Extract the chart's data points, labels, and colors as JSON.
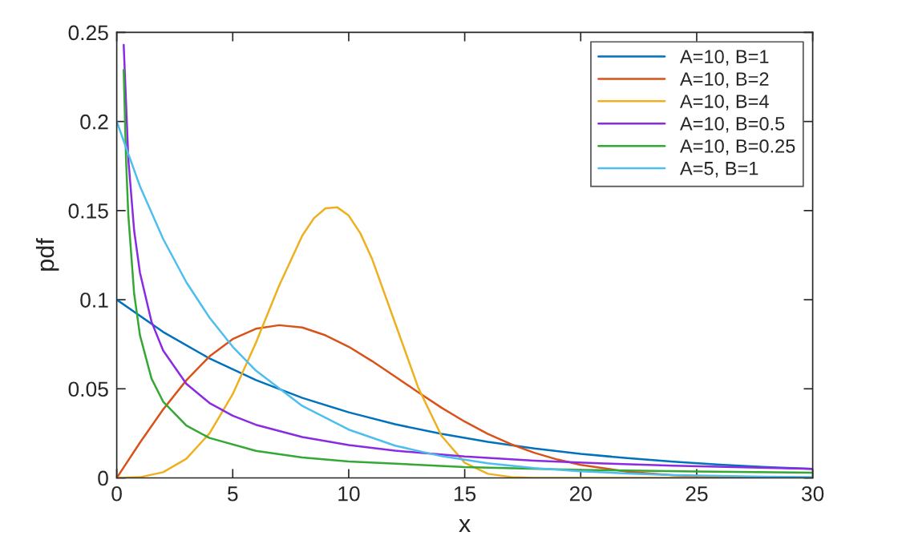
{
  "chart_data": {
    "type": "line",
    "xlabel": "x",
    "ylabel": "pdf",
    "xlim": [
      0,
      30
    ],
    "ylim": [
      0,
      0.25
    ],
    "xticks": [
      0,
      5,
      10,
      15,
      20,
      25,
      30
    ],
    "yticks": [
      0,
      0.05,
      0.1,
      0.15,
      0.2,
      0.25
    ],
    "grid": false,
    "legend": "top right",
    "marker": "none",
    "line_style": "solid",
    "series": [
      {
        "name": "A=10, B=1",
        "color": "#0072bd",
        "x": [
          0,
          2,
          4,
          6,
          8,
          10,
          12,
          14,
          16,
          18,
          20,
          22,
          24,
          26,
          28,
          30
        ],
        "values": [
          0.1,
          0.0819,
          0.067,
          0.0549,
          0.0449,
          0.0368,
          0.0301,
          0.0247,
          0.0202,
          0.0165,
          0.0135,
          0.0111,
          0.0091,
          0.0074,
          0.0061,
          0.005
        ]
      },
      {
        "name": "A=10, B=2",
        "color": "#d95319",
        "x": [
          0,
          1,
          2,
          3,
          4,
          5,
          6,
          7,
          8,
          9,
          10,
          11,
          12,
          13,
          14,
          15,
          16,
          17,
          18,
          19,
          20,
          22,
          24,
          26,
          28,
          30
        ],
        "values": [
          0,
          0.0198,
          0.0384,
          0.0548,
          0.0682,
          0.0779,
          0.0837,
          0.0857,
          0.0844,
          0.08,
          0.0736,
          0.0656,
          0.0569,
          0.048,
          0.0394,
          0.0316,
          0.0247,
          0.0189,
          0.0141,
          0.0103,
          0.0073,
          0.0035,
          0.0015,
          0.0006,
          0.0002,
          0.0001
        ]
      },
      {
        "name": "A=10, B=4",
        "color": "#edb120",
        "x": [
          0,
          1,
          2,
          3,
          4,
          5,
          6,
          7,
          8,
          8.5,
          9,
          9.5,
          10,
          10.5,
          11,
          12,
          13,
          14,
          15,
          16,
          17,
          18,
          20,
          30
        ],
        "values": [
          0,
          0.0004,
          0.0032,
          0.0107,
          0.025,
          0.047,
          0.0759,
          0.1079,
          0.136,
          0.1457,
          0.1513,
          0.1519,
          0.1472,
          0.1373,
          0.1231,
          0.0869,
          0.0505,
          0.0236,
          0.0085,
          0.0023,
          0.0005,
          0,
          0,
          0
        ]
      },
      {
        "name": "A=10, B=0.5",
        "color": "#8a2be2",
        "x": [
          0.3,
          0.5,
          0.75,
          1,
          1.5,
          2,
          3,
          4,
          5,
          6,
          8,
          10,
          12,
          15,
          18,
          21,
          24,
          27,
          30
        ],
        "values": [
          0.243,
          0.1788,
          0.1388,
          0.1152,
          0.0876,
          0.0715,
          0.0528,
          0.042,
          0.0349,
          0.0298,
          0.0229,
          0.0184,
          0.0153,
          0.012,
          0.0097,
          0.0081,
          0.0069,
          0.0059,
          0.0051
        ]
      },
      {
        "name": "A=10, B=0.25",
        "color": "#34a835",
        "x": [
          0.3,
          0.4,
          0.5,
          0.75,
          1,
          1.5,
          2,
          3,
          4,
          6,
          8,
          10,
          15,
          20,
          25,
          30
        ],
        "values": [
          0.229,
          0.1787,
          0.1473,
          0.1034,
          0.0801,
          0.0557,
          0.0428,
          0.0294,
          0.0224,
          0.0152,
          0.0115,
          0.0092,
          0.0061,
          0.0045,
          0.0036,
          0.0029
        ]
      },
      {
        "name": "A=5, B=1",
        "color": "#4dbeee",
        "x": [
          0,
          1,
          2,
          3,
          4,
          5,
          6,
          8,
          10,
          12,
          14,
          16,
          18,
          20,
          22,
          24,
          26,
          28,
          30
        ],
        "values": [
          0.2,
          0.1637,
          0.1341,
          0.1098,
          0.0899,
          0.0736,
          0.0602,
          0.0404,
          0.0271,
          0.0181,
          0.0122,
          0.0082,
          0.0055,
          0.0037,
          0.0025,
          0.0016,
          0.0011,
          0.0007,
          0.0005
        ]
      }
    ]
  }
}
